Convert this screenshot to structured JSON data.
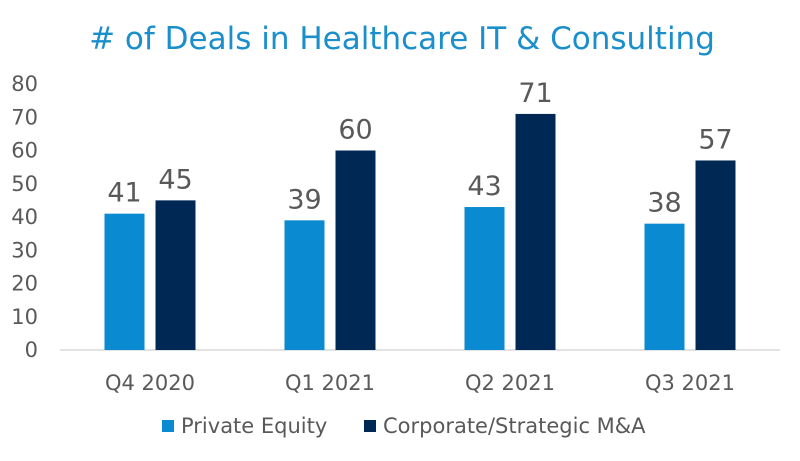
{
  "chart_data": {
    "type": "bar",
    "title": "# of Deals in Healthcare IT & Consulting",
    "xlabel": "",
    "ylabel": "",
    "categories": [
      "Q4 2020",
      "Q1 2021",
      "Q2 2021",
      "Q3 2021"
    ],
    "series": [
      {
        "name": "Private Equity",
        "values": [
          41,
          39,
          43,
          38
        ],
        "color": "#0A8AD0"
      },
      {
        "name": "Corporate/Strategic M&A",
        "values": [
          45,
          60,
          71,
          57
        ],
        "color": "#002855"
      }
    ],
    "ylim": [
      0,
      80
    ],
    "yticks": [
      "0",
      "10",
      "20",
      "30",
      "40",
      "50",
      "60",
      "70",
      "80"
    ],
    "grid": false,
    "legend_position": "bottom",
    "data_labels": true,
    "title_color": "#1A8FCC",
    "axis_color": "#D9D9D9"
  }
}
